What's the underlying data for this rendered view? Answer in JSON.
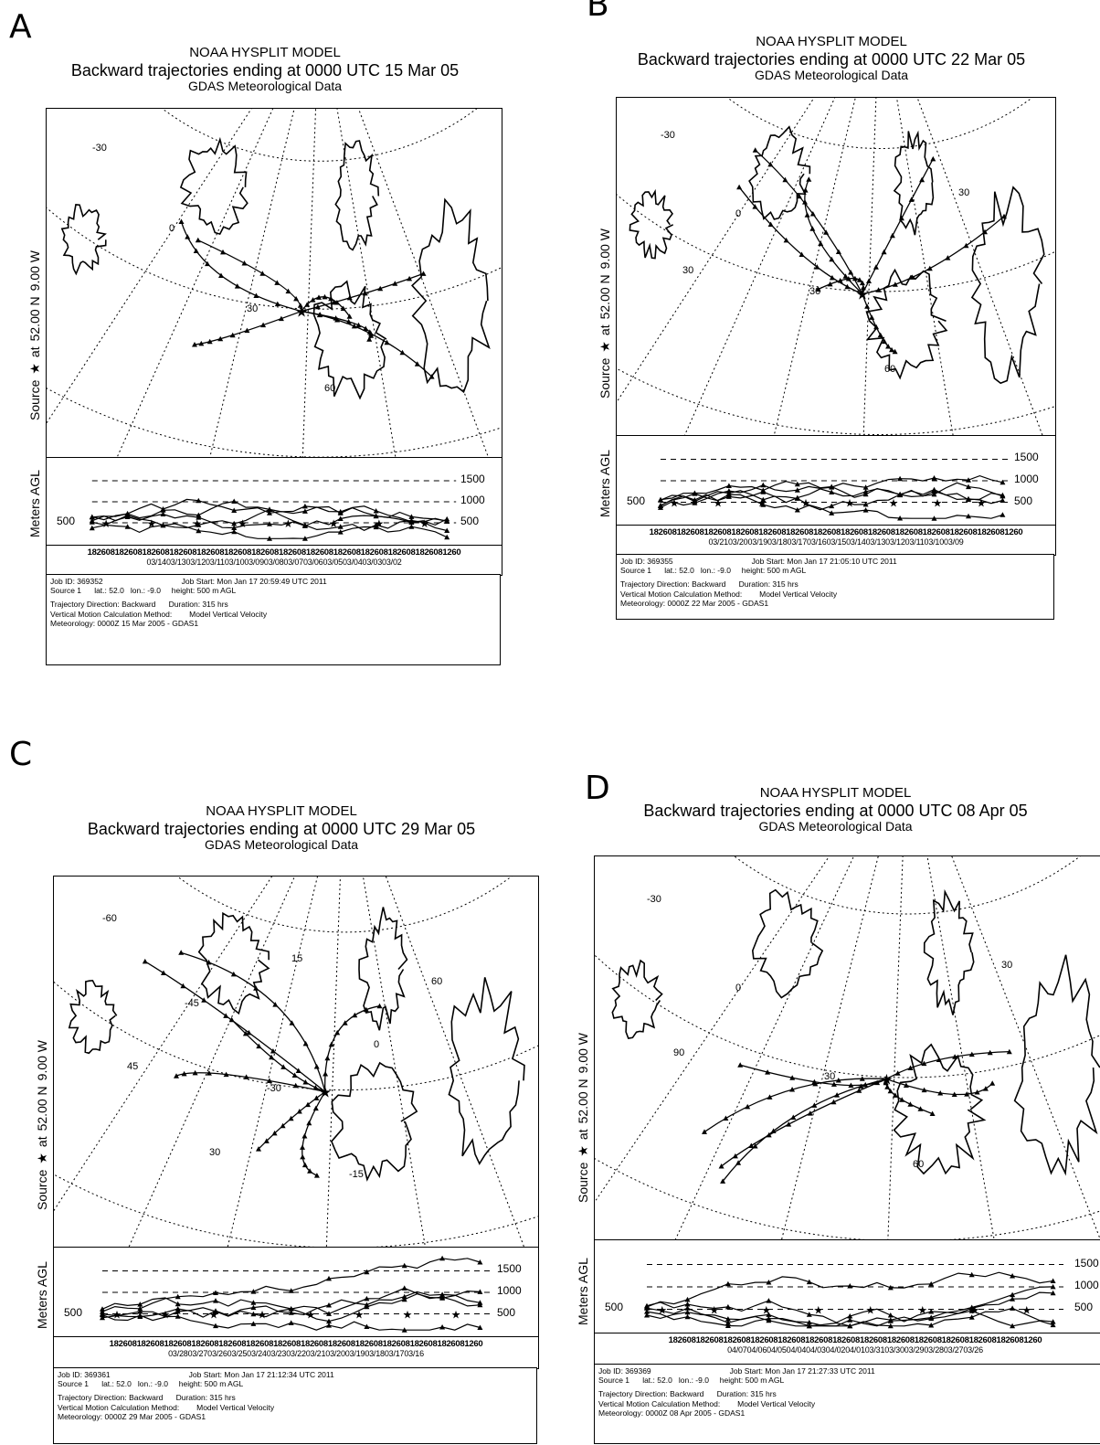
{
  "panels": [
    {
      "letter": "A",
      "title": "NOAA HYSPLIT MODEL",
      "subtitle": "Backward trajectories ending at 0000 UTC 15 Mar 05",
      "data_source": "GDAS Meteorological Data",
      "source_label": [
        "Source",
        "★",
        "at",
        "52.00 N",
        "9.00 W"
      ],
      "y_axis_label": "Meters AGL",
      "height_levels": [
        "1500",
        "1000",
        "500"
      ],
      "left_level": "500",
      "hours_row": "1826081826081826081826081826081826081826081826081826081826081826081826081826081260",
      "dates_row": "03/1403/1303/1203/1103/1003/0903/0803/0703/0603/0503/0403/0303/02",
      "job_id": "Job ID: 369352",
      "job_start": "Job Start: Mon Jan 17 20:59:49 UTC 2011",
      "source_line": "Source 1      lat.: 52.0   lon.: -9.0     height: 500 m AGL",
      "direction": "Trajectory Direction: Backward      Duration: 315 hrs",
      "vertical_method": "Vertical Motion Calculation Method:        Model Vertical Velocity",
      "meteorology": "Meteorology: 0000Z 15 Mar 2005 - GDAS1",
      "grid_labels": [
        "-30",
        "0",
        "30",
        "60"
      ]
    },
    {
      "letter": "B",
      "title": "NOAA HYSPLIT MODEL",
      "subtitle": "Backward trajectories ending at 0000 UTC 22 Mar 05",
      "data_source": "GDAS Meteorological Data",
      "source_label": [
        "Source",
        "★",
        "at",
        "52.00 N",
        "9.00 W"
      ],
      "y_axis_label": "Meters AGL",
      "height_levels": [
        "1500",
        "1000",
        "500"
      ],
      "left_level": "500",
      "hours_row": "1826081826081826081826081826081826081826081826081826081826081826081826081826081260",
      "dates_row": "03/2103/2003/1903/1803/1703/1603/1503/1403/1303/1203/1103/1003/09",
      "job_id": "Job ID: 369355",
      "job_start": "Job Start: Mon Jan 17 21:05:10 UTC 2011",
      "source_line": "Source 1      lat.: 52.0   lon.: -9.0     height: 500 m AGL",
      "direction": "Trajectory Direction: Backward      Duration: 315 hrs",
      "vertical_method": "Vertical Motion Calculation Method:        Model Vertical Velocity",
      "meteorology": "Meteorology: 0000Z 22 Mar 2005 - GDAS1",
      "grid_labels": [
        "-30",
        "0",
        "30",
        "60",
        "30",
        "30"
      ]
    },
    {
      "letter": "C",
      "title": "NOAA HYSPLIT MODEL",
      "subtitle": "Backward trajectories ending at 0000 UTC 29 Mar 05",
      "data_source": "GDAS Meteorological Data",
      "source_label": [
        "Source",
        "★",
        "at",
        "52.00 N",
        "9.00 W"
      ],
      "y_axis_label": "Meters AGL",
      "height_levels": [
        "1500",
        "1000",
        "500"
      ],
      "left_level": "500",
      "hours_row": "1826081826081826081826081826081826081826081826081826081826081826081826081826081260",
      "dates_row": "03/2803/2703/2603/2503/2403/2303/2203/2103/2003/1903/1803/1703/16",
      "job_id": "Job ID: 369361",
      "job_start": "Job Start: Mon Jan 17 21:12:34 UTC 2011",
      "source_line": "Source 1      lat.: 52.0   lon.: -9.0     height: 500 m AGL",
      "direction": "Trajectory Direction: Backward      Duration: 315 hrs",
      "vertical_method": "Vertical Motion Calculation Method:        Model Vertical Velocity",
      "meteorology": "Meteorology: 0000Z 29 Mar 2005 - GDAS1",
      "grid_labels": [
        "-60",
        "-45",
        "-30",
        "-15",
        "60",
        "45",
        "30",
        "15",
        "0"
      ]
    },
    {
      "letter": "D",
      "title": "NOAA HYSPLIT MODEL",
      "subtitle": "Backward trajectories ending at 0000 UTC 08 Apr 05",
      "data_source": "GDAS Meteorological Data",
      "source_label": [
        "Source",
        "★",
        "at",
        "52.00 N",
        "9.00 W"
      ],
      "y_axis_label": "Meters AGL",
      "height_levels": [
        "1500",
        "1000",
        "500"
      ],
      "left_level": "500",
      "hours_row": "1826081826081826081826081826081826081826081826081826081826081826081826081826081260",
      "dates_row": "04/0704/0604/0504/0404/0304/0204/0103/3103/3003/2903/2803/2703/26",
      "job_id": "Job ID: 369369",
      "job_start": "Job Start: Mon Jan 17 21:27:33 UTC 2011",
      "source_line": "Source 1      lat.: 52.0   lon.: -9.0     height: 500 m AGL",
      "direction": "Trajectory Direction: Backward      Duration: 315 hrs",
      "vertical_method": "Vertical Motion Calculation Method:        Model Vertical Velocity",
      "meteorology": "Meteorology: 0000Z 08 Apr 2005 - GDAS1",
      "grid_labels": [
        "-30",
        "0",
        "30",
        "60",
        "30",
        "90"
      ]
    }
  ]
}
